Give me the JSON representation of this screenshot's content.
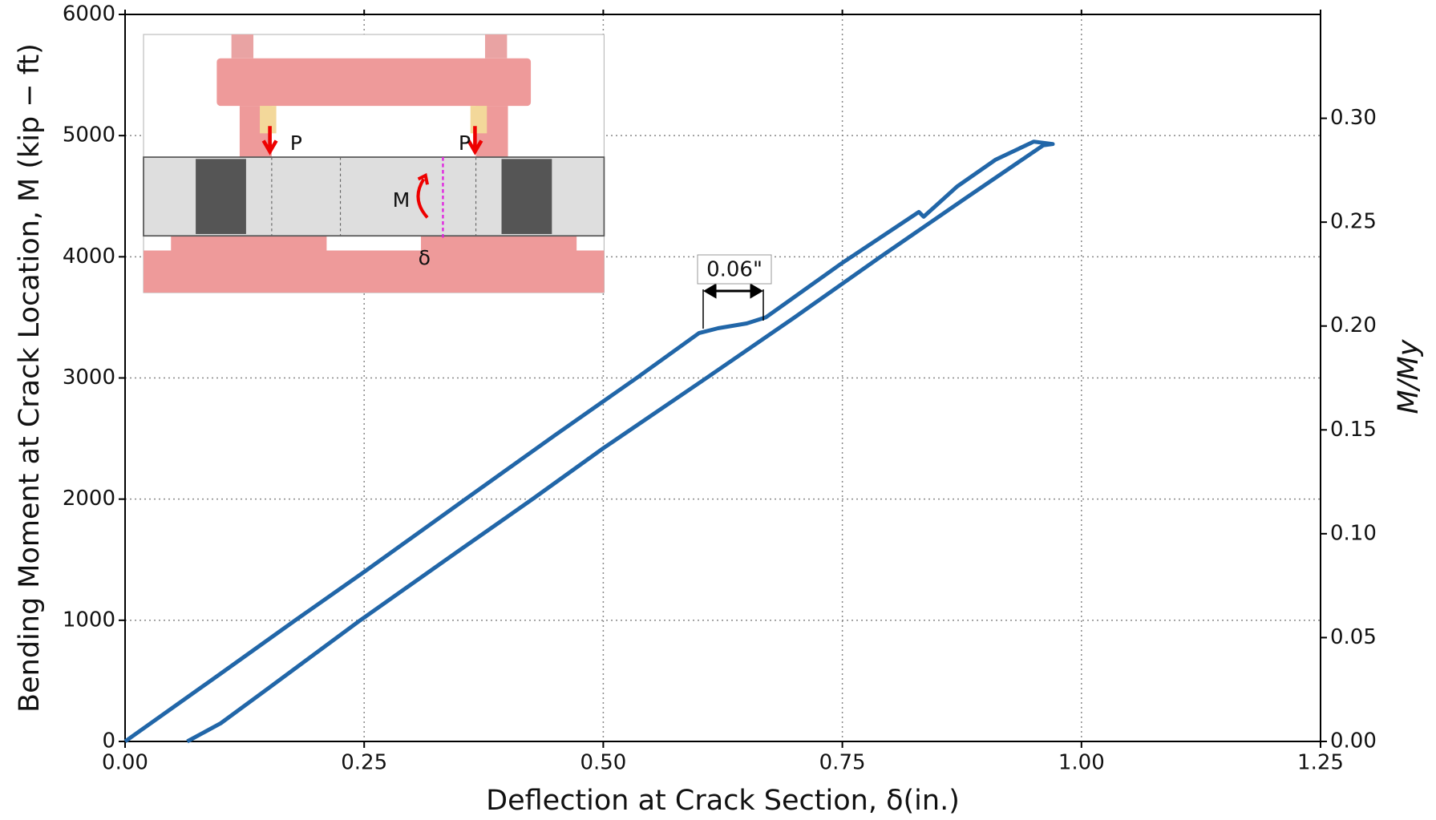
{
  "chart_data": {
    "type": "line",
    "x_label": "Deflection at Crack Section, δ(in.)",
    "y_label": "Bending Moment at Crack Location, M (kip − ft)",
    "y2_label": "M/My",
    "x": [
      0,
      0.05,
      0.1,
      0.178,
      0.25,
      0.356,
      0.45,
      0.535,
      0.6,
      0.62,
      0.65,
      0.67,
      0.75,
      0.83,
      0.835,
      0.87,
      0.91,
      0.95,
      0.97,
      0.96,
      0.88,
      0.79,
      0.7,
      0.608,
      0.5,
      0.426,
      0.35,
      0.246,
      0.15,
      0.1,
      0.065
    ],
    "series": [
      {
        "color": "#2166a8",
        "values": [
          0,
          280,
          560,
          1000,
          1400,
          2000,
          2530,
          3000,
          3370,
          3410,
          3450,
          3500,
          3950,
          4370,
          4330,
          4580,
          4800,
          4950,
          4930,
          4920,
          4490,
          4000,
          3500,
          3000,
          2420,
          2000,
          1580,
          1000,
          440,
          150,
          0
        ]
      }
    ],
    "xlim": [
      0,
      1.25
    ],
    "xticks": [
      {
        "value": 0,
        "label": "0.00"
      },
      {
        "value": 0.25,
        "label": "0.25"
      },
      {
        "value": 0.5,
        "label": "0.50"
      },
      {
        "value": 0.75,
        "label": "0.75"
      },
      {
        "value": 1,
        "label": "1.00"
      },
      {
        "value": 1.25,
        "label": "1.25"
      }
    ],
    "ylim": [
      0,
      6000
    ],
    "yticks": [
      0,
      1000,
      2000,
      3000,
      4000,
      5000,
      6000
    ],
    "y2lim": [
      0,
      0.35
    ],
    "y2ticks": [
      {
        "value": 0,
        "label": "0.00"
      },
      {
        "value": 0.05,
        "label": "0.05"
      },
      {
        "value": 0.1,
        "label": "0.10"
      },
      {
        "value": 0.15,
        "label": "0.15"
      },
      {
        "value": 0.2,
        "label": "0.20"
      },
      {
        "value": 0.25,
        "label": "0.25"
      },
      {
        "value": 0.3,
        "label": "0.30"
      }
    ],
    "grid": true,
    "annotation": "0.06\"",
    "inset_labels": [
      "P",
      "P",
      "M",
      "δ"
    ]
  }
}
